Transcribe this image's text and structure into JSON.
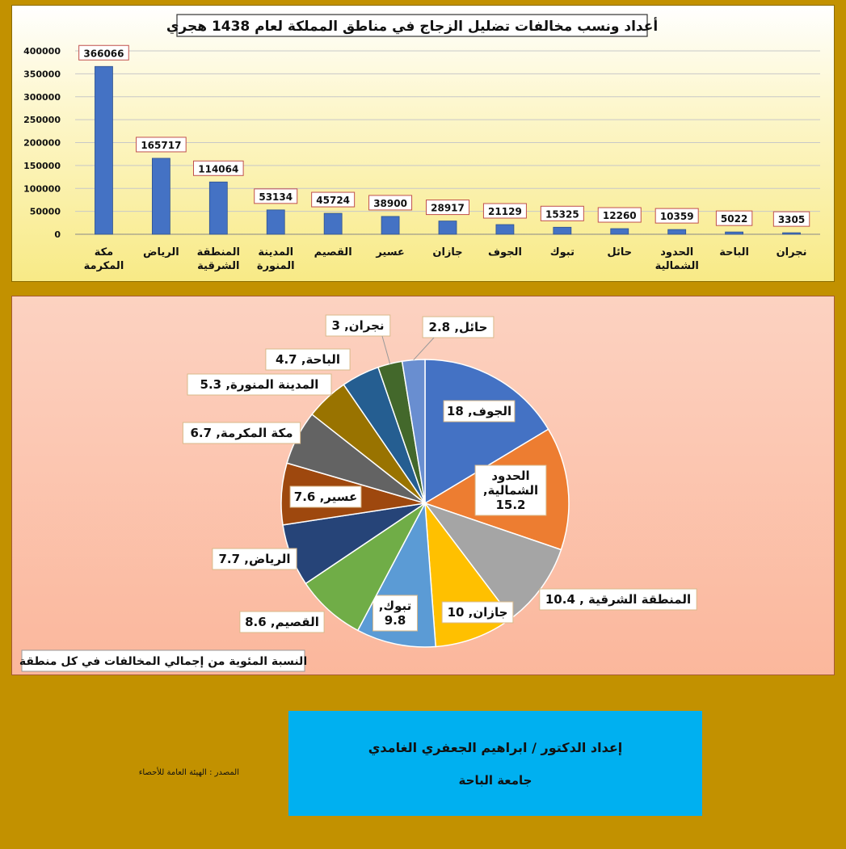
{
  "chart_data": [
    {
      "type": "bar",
      "title": "أعداد ونسب مخالفات تضليل الزجاج في مناطق المملكة لعام 1438 هجري",
      "categories": [
        "مكة\nالمكرمة",
        "الرياض",
        "المنطقة\nالشرقية",
        "المدينة\nالمنورة",
        "القصيم",
        "عسير",
        "جازان",
        "الجوف",
        "تبوك",
        "حائل",
        "الحدود\nالشمالية",
        "الباحة",
        "نجران"
      ],
      "values": [
        366066,
        165717,
        114064,
        53134,
        45724,
        38900,
        28917,
        21129,
        15325,
        12260,
        10359,
        5022,
        3305
      ],
      "ylim": [
        0,
        400000
      ],
      "yticks": [
        0,
        50000,
        100000,
        150000,
        200000,
        250000,
        300000,
        350000,
        400000
      ],
      "grid": true,
      "bar_color": "#4472C4"
    },
    {
      "type": "pie",
      "title": "النسبة المئوية من إجمالي المخالفات في كل منطقة",
      "slices": [
        {
          "label": "الجوف, 18",
          "value": 18,
          "color": "#4472C4"
        },
        {
          "label": "الحدود الشمالية, 15.2",
          "value": 15.2,
          "color": "#ED7D31"
        },
        {
          "label": "المنطقة الشرقية , 10.4",
          "value": 10.4,
          "color": "#A5A5A5"
        },
        {
          "label": "جازان, 10",
          "value": 10,
          "color": "#FFC000"
        },
        {
          "label": "تبوك, 9.8",
          "value": 9.8,
          "color": "#5B9BD5"
        },
        {
          "label": "القصيم, 8.6",
          "value": 8.6,
          "color": "#70AD47"
        },
        {
          "label": "الرياض, 7.7",
          "value": 7.7,
          "color": "#264478"
        },
        {
          "label": "عسير, 7.6",
          "value": 7.6,
          "color": "#9E480E"
        },
        {
          "label": "مكة المكرمة, 6.7",
          "value": 6.7,
          "color": "#636363"
        },
        {
          "label": "المدينة المنورة, 5.3",
          "value": 5.3,
          "color": "#997300"
        },
        {
          "label": "الباحة, 4.7",
          "value": 4.7,
          "color": "#255E91"
        },
        {
          "label": "نجران, 3",
          "value": 3,
          "color": "#43682B"
        },
        {
          "label": "حائل, 2.8",
          "value": 2.8,
          "color": "#698ED0"
        }
      ]
    }
  ],
  "credit": {
    "line1": "إعداد الدكتور / ابراهيم الجعفري الغامدي",
    "line2": "جامعة الباحة"
  },
  "source": "المصدر : الهيئة العامة للأحصاء"
}
